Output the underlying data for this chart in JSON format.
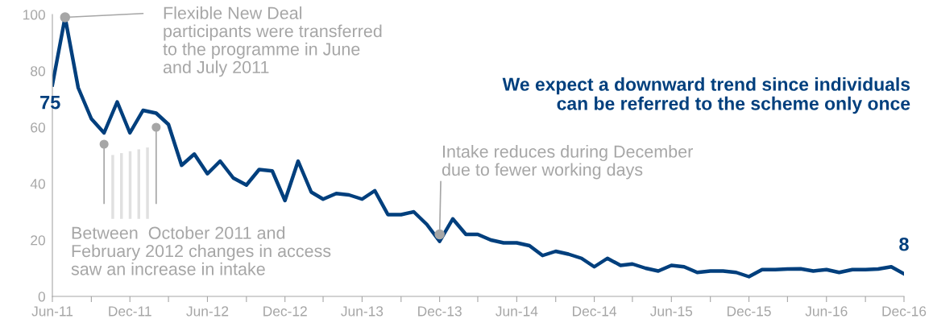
{
  "chart_data": {
    "type": "line",
    "x": [
      "2011-06",
      "2011-07",
      "2011-08",
      "2011-09",
      "2011-10",
      "2011-11",
      "2011-12",
      "2012-01",
      "2012-02",
      "2012-03",
      "2012-04",
      "2012-05",
      "2012-06",
      "2012-07",
      "2012-08",
      "2012-09",
      "2012-10",
      "2012-11",
      "2012-12",
      "2013-01",
      "2013-02",
      "2013-03",
      "2013-04",
      "2013-05",
      "2013-06",
      "2013-07",
      "2013-08",
      "2013-09",
      "2013-10",
      "2013-11",
      "2013-12",
      "2014-01",
      "2014-02",
      "2014-03",
      "2014-04",
      "2014-05",
      "2014-06",
      "2014-07",
      "2014-08",
      "2014-09",
      "2014-10",
      "2014-11",
      "2014-12",
      "2015-01",
      "2015-02",
      "2015-03",
      "2015-04",
      "2015-05",
      "2015-06",
      "2015-07",
      "2015-08",
      "2015-09",
      "2015-10",
      "2015-11",
      "2015-12",
      "2016-01",
      "2016-02",
      "2016-03",
      "2016-04",
      "2016-05",
      "2016-06",
      "2016-07",
      "2016-08",
      "2016-09",
      "2016-10",
      "2016-11",
      "2016-12"
    ],
    "series": [
      {
        "color": "#003f7d",
        "values": [
          75,
          99,
          74,
          63,
          58,
          69,
          58,
          66,
          65,
          61,
          46.5,
          50.5,
          43.5,
          48,
          42,
          39.5,
          45,
          44.5,
          34,
          48,
          37,
          34.5,
          36.5,
          36,
          34.5,
          37.5,
          29,
          29,
          30,
          25.5,
          19.5,
          27.5,
          22,
          22,
          20,
          19,
          19,
          18,
          14.5,
          16,
          15,
          13.5,
          10.5,
          13.5,
          11,
          11.5,
          10,
          9,
          11,
          10.5,
          8.5,
          9,
          9,
          8.5,
          7,
          9.5,
          9.5,
          9.7,
          9.8,
          9,
          9.5,
          8.5,
          9.5,
          9.5,
          9.7,
          10.5,
          8
        ],
        "value_labels": [
          "75",
          null,
          null,
          null,
          null,
          null,
          null,
          null,
          null,
          null,
          null,
          null,
          null,
          null,
          null,
          null,
          null,
          null,
          null,
          null,
          null,
          null,
          null,
          null,
          null,
          null,
          null,
          null,
          null,
          null,
          null,
          null,
          null,
          null,
          null,
          null,
          null,
          null,
          null,
          null,
          null,
          null,
          null,
          null,
          null,
          null,
          null,
          null,
          null,
          null,
          null,
          null,
          null,
          null,
          null,
          null,
          null,
          null,
          null,
          null,
          null,
          null,
          null,
          null,
          null,
          null,
          "8"
        ]
      }
    ],
    "xlim": [
      "2011-06",
      "2016-12"
    ],
    "xticks": [
      {
        "value": "2011-06",
        "label": "Jun-11"
      },
      {
        "value": "2011-09",
        "label": null
      },
      {
        "value": "2011-12",
        "label": "Dec-11"
      },
      {
        "value": "2012-03",
        "label": null
      },
      {
        "value": "2012-06",
        "label": "Jun-12"
      },
      {
        "value": "2012-09",
        "label": null
      },
      {
        "value": "2012-12",
        "label": "Dec-12"
      },
      {
        "value": "2013-03",
        "label": null
      },
      {
        "value": "2013-06",
        "label": "Jun-13"
      },
      {
        "value": "2013-09",
        "label": null
      },
      {
        "value": "2013-12",
        "label": "Dec-13"
      },
      {
        "value": "2014-03",
        "label": null
      },
      {
        "value": "2014-06",
        "label": "Jun-14"
      },
      {
        "value": "2014-09",
        "label": null
      },
      {
        "value": "2014-12",
        "label": "Dec-14"
      },
      {
        "value": "2015-03",
        "label": null
      },
      {
        "value": "2015-06",
        "label": "Jun-15"
      },
      {
        "value": "2015-09",
        "label": null
      },
      {
        "value": "2015-12",
        "label": "Dec-15"
      },
      {
        "value": "2016-03",
        "label": null
      },
      {
        "value": "2016-06",
        "label": "Jun-16"
      },
      {
        "value": "2016-09",
        "label": null
      },
      {
        "value": "2016-12",
        "label": "Dec-16"
      }
    ],
    "ylim": [
      0,
      100
    ],
    "yticks": [
      0,
      20,
      40,
      60,
      80,
      100
    ],
    "grid": false,
    "legend": false,
    "marker": "none",
    "line_style": "solid",
    "annotations": [
      {
        "text": "Flexible New Deal\nparticipants were transferred\nto the programme in June\nand July 2011",
        "x": "2011-07",
        "y": 99
      },
      "Between  October 2011 and\nFebruary 2012 changes in access\nsaw an increase in intake",
      {
        "text": "Intake reduces during December\ndue to fewer working days",
        "x": "2013-12",
        "y": 22
      },
      "We expect a downward trend since individuals\ncan be referred to the scheme only once"
    ]
  }
}
